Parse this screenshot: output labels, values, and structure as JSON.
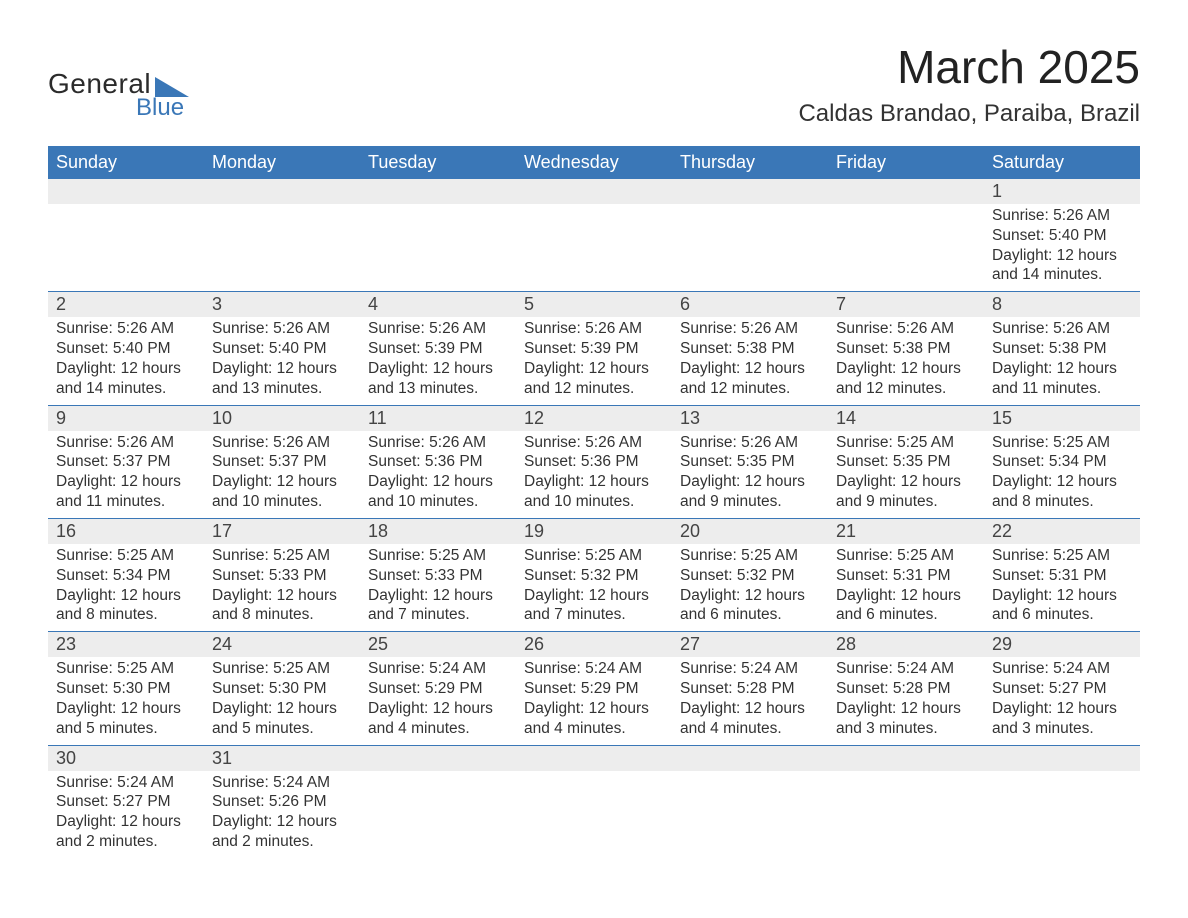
{
  "logo": {
    "text1": "General",
    "text2": "Blue",
    "triangle_color": "#3a77b7"
  },
  "title": "March 2025",
  "location": "Caldas Brandao, Paraiba, Brazil",
  "colors": {
    "header_bg": "#3a77b7",
    "header_text": "#ffffff",
    "daynum_bg": "#ededed",
    "row_divider": "#3a77b7",
    "text": "#333333"
  },
  "typography": {
    "title_fontsize": 46,
    "location_fontsize": 24,
    "header_fontsize": 18,
    "daynum_fontsize": 18,
    "body_fontsize": 15.5
  },
  "calendar": {
    "type": "calendar-table",
    "columns": [
      "Sunday",
      "Monday",
      "Tuesday",
      "Wednesday",
      "Thursday",
      "Friday",
      "Saturday"
    ],
    "weeks": [
      [
        null,
        null,
        null,
        null,
        null,
        null,
        {
          "day": "1",
          "sunrise": "5:26 AM",
          "sunset": "5:40 PM",
          "daylight": "12 hours and 14 minutes."
        }
      ],
      [
        {
          "day": "2",
          "sunrise": "5:26 AM",
          "sunset": "5:40 PM",
          "daylight": "12 hours and 14 minutes."
        },
        {
          "day": "3",
          "sunrise": "5:26 AM",
          "sunset": "5:40 PM",
          "daylight": "12 hours and 13 minutes."
        },
        {
          "day": "4",
          "sunrise": "5:26 AM",
          "sunset": "5:39 PM",
          "daylight": "12 hours and 13 minutes."
        },
        {
          "day": "5",
          "sunrise": "5:26 AM",
          "sunset": "5:39 PM",
          "daylight": "12 hours and 12 minutes."
        },
        {
          "day": "6",
          "sunrise": "5:26 AM",
          "sunset": "5:38 PM",
          "daylight": "12 hours and 12 minutes."
        },
        {
          "day": "7",
          "sunrise": "5:26 AM",
          "sunset": "5:38 PM",
          "daylight": "12 hours and 12 minutes."
        },
        {
          "day": "8",
          "sunrise": "5:26 AM",
          "sunset": "5:38 PM",
          "daylight": "12 hours and 11 minutes."
        }
      ],
      [
        {
          "day": "9",
          "sunrise": "5:26 AM",
          "sunset": "5:37 PM",
          "daylight": "12 hours and 11 minutes."
        },
        {
          "day": "10",
          "sunrise": "5:26 AM",
          "sunset": "5:37 PM",
          "daylight": "12 hours and 10 minutes."
        },
        {
          "day": "11",
          "sunrise": "5:26 AM",
          "sunset": "5:36 PM",
          "daylight": "12 hours and 10 minutes."
        },
        {
          "day": "12",
          "sunrise": "5:26 AM",
          "sunset": "5:36 PM",
          "daylight": "12 hours and 10 minutes."
        },
        {
          "day": "13",
          "sunrise": "5:26 AM",
          "sunset": "5:35 PM",
          "daylight": "12 hours and 9 minutes."
        },
        {
          "day": "14",
          "sunrise": "5:25 AM",
          "sunset": "5:35 PM",
          "daylight": "12 hours and 9 minutes."
        },
        {
          "day": "15",
          "sunrise": "5:25 AM",
          "sunset": "5:34 PM",
          "daylight": "12 hours and 8 minutes."
        }
      ],
      [
        {
          "day": "16",
          "sunrise": "5:25 AM",
          "sunset": "5:34 PM",
          "daylight": "12 hours and 8 minutes."
        },
        {
          "day": "17",
          "sunrise": "5:25 AM",
          "sunset": "5:33 PM",
          "daylight": "12 hours and 8 minutes."
        },
        {
          "day": "18",
          "sunrise": "5:25 AM",
          "sunset": "5:33 PM",
          "daylight": "12 hours and 7 minutes."
        },
        {
          "day": "19",
          "sunrise": "5:25 AM",
          "sunset": "5:32 PM",
          "daylight": "12 hours and 7 minutes."
        },
        {
          "day": "20",
          "sunrise": "5:25 AM",
          "sunset": "5:32 PM",
          "daylight": "12 hours and 6 minutes."
        },
        {
          "day": "21",
          "sunrise": "5:25 AM",
          "sunset": "5:31 PM",
          "daylight": "12 hours and 6 minutes."
        },
        {
          "day": "22",
          "sunrise": "5:25 AM",
          "sunset": "5:31 PM",
          "daylight": "12 hours and 6 minutes."
        }
      ],
      [
        {
          "day": "23",
          "sunrise": "5:25 AM",
          "sunset": "5:30 PM",
          "daylight": "12 hours and 5 minutes."
        },
        {
          "day": "24",
          "sunrise": "5:25 AM",
          "sunset": "5:30 PM",
          "daylight": "12 hours and 5 minutes."
        },
        {
          "day": "25",
          "sunrise": "5:24 AM",
          "sunset": "5:29 PM",
          "daylight": "12 hours and 4 minutes."
        },
        {
          "day": "26",
          "sunrise": "5:24 AM",
          "sunset": "5:29 PM",
          "daylight": "12 hours and 4 minutes."
        },
        {
          "day": "27",
          "sunrise": "5:24 AM",
          "sunset": "5:28 PM",
          "daylight": "12 hours and 4 minutes."
        },
        {
          "day": "28",
          "sunrise": "5:24 AM",
          "sunset": "5:28 PM",
          "daylight": "12 hours and 3 minutes."
        },
        {
          "day": "29",
          "sunrise": "5:24 AM",
          "sunset": "5:27 PM",
          "daylight": "12 hours and 3 minutes."
        }
      ],
      [
        {
          "day": "30",
          "sunrise": "5:24 AM",
          "sunset": "5:27 PM",
          "daylight": "12 hours and 2 minutes."
        },
        {
          "day": "31",
          "sunrise": "5:24 AM",
          "sunset": "5:26 PM",
          "daylight": "12 hours and 2 minutes."
        },
        null,
        null,
        null,
        null,
        null
      ]
    ],
    "labels": {
      "sunrise": "Sunrise: ",
      "sunset": "Sunset: ",
      "daylight": "Daylight: "
    }
  }
}
